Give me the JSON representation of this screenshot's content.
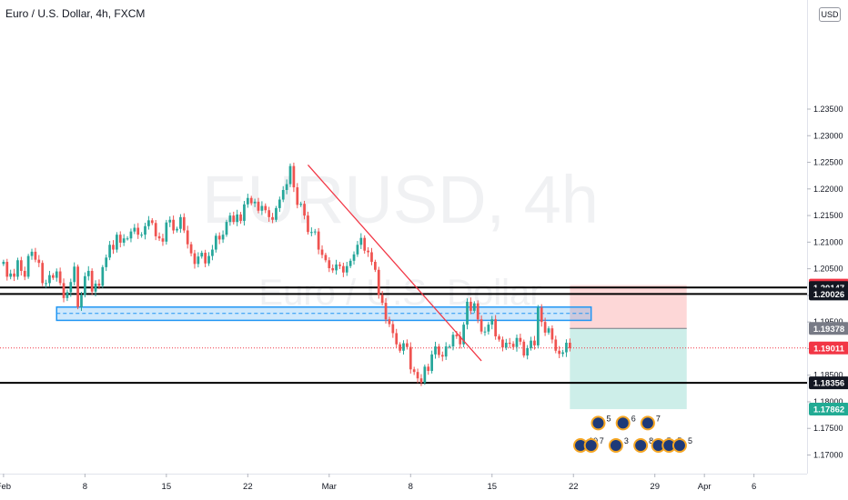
{
  "header": {
    "title": "Euro / U.S. Dollar, 4h, FXCM",
    "currency": "USD"
  },
  "watermark": {
    "symbol": "EURUSD, 4h",
    "name": "Euro / U.S. Dollar"
  },
  "colors": {
    "up": "#26a69a",
    "down": "#ef5350",
    "zone": "#2196f3",
    "trend": "#f23645",
    "stop_fill": "#fdd7d7",
    "target_fill": "#cdeee9",
    "axis_text": "#131722",
    "watermark": "#f0f1f3"
  },
  "chart_data": {
    "type": "candlestick",
    "symbol": "EURUSD",
    "timeframe": "4h",
    "source": "FXCM",
    "ylim": [
      1.1665,
      1.2555
    ],
    "y_ticks": [
      "1.17000",
      "1.17500",
      "1.18000",
      "1.18500",
      "1.19000",
      "1.19500",
      "1.20000",
      "1.20500",
      "1.21000",
      "1.21500",
      "1.22000",
      "1.22500",
      "1.23000",
      "1.23500"
    ],
    "x_ticks": [
      {
        "label": "Feb",
        "index": 0
      },
      {
        "label": "8",
        "index": 23
      },
      {
        "label": "15",
        "index": 46
      },
      {
        "label": "22",
        "index": 69
      },
      {
        "label": "Mar",
        "index": 92
      },
      {
        "label": "8",
        "index": 115
      },
      {
        "label": "15",
        "index": 138
      },
      {
        "label": "22",
        "index": 161
      },
      {
        "label": "29",
        "index": 184
      },
      {
        "label": "Apr",
        "index": 198
      },
      {
        "label": "6",
        "index": 212
      }
    ],
    "x_range": [
      -1,
      227
    ],
    "closes": [
      1.2063,
      1.2035,
      1.2041,
      1.2035,
      1.2066,
      1.2046,
      1.2035,
      1.2074,
      1.2082,
      1.2067,
      1.2061,
      1.2023,
      1.2023,
      1.2038,
      1.2033,
      1.2045,
      1.2023,
      1.1995,
      1.2006,
      1.2025,
      1.2054,
      1.1978,
      1.2001,
      1.2036,
      1.2046,
      1.2007,
      1.2022,
      1.2018,
      1.2053,
      1.2071,
      1.2095,
      1.2086,
      1.2114,
      1.2099,
      1.2107,
      1.2107,
      1.212,
      1.2127,
      1.2114,
      1.2114,
      1.213,
      1.2141,
      1.2136,
      1.2111,
      1.2107,
      1.2101,
      1.2137,
      1.2142,
      1.2122,
      1.2125,
      1.2147,
      1.2122,
      1.2096,
      1.2079,
      1.2059,
      1.2073,
      1.208,
      1.206,
      1.2074,
      1.2086,
      1.2112,
      1.2105,
      1.2114,
      1.2138,
      1.215,
      1.2138,
      1.2152,
      1.214,
      1.2171,
      1.2183,
      1.2173,
      1.2176,
      1.2159,
      1.2168,
      1.216,
      1.2147,
      1.2142,
      1.2164,
      1.218,
      1.2198,
      1.2209,
      1.2243,
      1.2203,
      1.217,
      1.2172,
      1.215,
      1.2119,
      1.2119,
      1.212,
      1.2086,
      1.2076,
      1.2066,
      1.2051,
      1.2047,
      1.2058,
      1.2055,
      1.2043,
      1.2055,
      1.2065,
      1.2077,
      1.2095,
      1.2108,
      1.2084,
      1.2081,
      1.2063,
      1.2048,
      1.2001,
      1.1986,
      1.1955,
      1.1946,
      1.1929,
      1.1908,
      1.1896,
      1.191,
      1.1903,
      1.1861,
      1.1856,
      1.1844,
      1.1836,
      1.1866,
      1.1858,
      1.1889,
      1.1904,
      1.1888,
      1.1885,
      1.1904,
      1.1904,
      1.1926,
      1.1923,
      1.1908,
      1.1945,
      1.1988,
      1.1971,
      1.1985,
      1.1955,
      1.1932,
      1.1932,
      1.1945,
      1.1955,
      1.1923,
      1.1917,
      1.1902,
      1.1911,
      1.1909,
      1.1903,
      1.192,
      1.1913,
      1.1887,
      1.1901,
      1.1915,
      1.1906,
      1.1977,
      1.195,
      1.193,
      1.1938,
      1.1917,
      1.1896,
      1.189,
      1.1893,
      1.1911,
      1.1901
    ],
    "horizontal_lines": [
      {
        "price": 1.20147,
        "label": "1.20147",
        "style": "solid-black"
      },
      {
        "price": 1.20026,
        "label": "1.20026",
        "style": "solid-black"
      },
      {
        "price": 1.18356,
        "label": "1.18356",
        "style": "solid-black"
      }
    ],
    "support_zone": {
      "top": 1.1978,
      "bottom": 1.1953,
      "mid": 1.1966,
      "start_index": 15,
      "end_index": 166
    },
    "trendline": {
      "from": {
        "index": 86,
        "price": 1.2245
      },
      "to": {
        "index": 135,
        "price": 1.1877
      }
    },
    "position": {
      "type": "short",
      "entry": 1.19378,
      "stop": 1.20193,
      "target": 1.17862,
      "start_index": 160,
      "end_index": 193
    },
    "current_price": 1.19011,
    "price_labels": [
      {
        "label": "1.20193",
        "price": 1.20193,
        "bg": "#f23645",
        "fg": "#ffffff"
      },
      {
        "label": "1.20147",
        "price": 1.20147,
        "bg": "#131722",
        "fg": "#ffffff"
      },
      {
        "label": "1.20026",
        "price": 1.20026,
        "bg": "#131722",
        "fg": "#ffffff"
      },
      {
        "label": "1.19378",
        "price": 1.19378,
        "bg": "#787b86",
        "fg": "#ffffff"
      },
      {
        "label": "1.19011",
        "price": 1.19011,
        "bg": "#f23645",
        "fg": "#ffffff"
      },
      {
        "label": "1.18356",
        "price": 1.18356,
        "bg": "#131722",
        "fg": "#ffffff"
      },
      {
        "label": "1.17862",
        "price": 1.17862,
        "bg": "#22ab94",
        "fg": "#ffffff"
      }
    ],
    "event_icons": [
      {
        "index": 168,
        "price": 1.176,
        "label": "5"
      },
      {
        "index": 175,
        "price": 1.176,
        "label": "6"
      },
      {
        "index": 182,
        "price": 1.176,
        "label": "7"
      },
      {
        "index": 163,
        "price": 1.1718,
        "label": "10"
      },
      {
        "index": 166,
        "price": 1.1718,
        "label": "7"
      },
      {
        "index": 173,
        "price": 1.1718,
        "label": "3"
      },
      {
        "index": 180,
        "price": 1.1718,
        "label": "8"
      },
      {
        "index": 185,
        "price": 1.1718,
        "label": "5"
      },
      {
        "index": 188,
        "price": 1.1718,
        "label": "5"
      },
      {
        "index": 191,
        "price": 1.1718,
        "label": "5"
      }
    ]
  }
}
